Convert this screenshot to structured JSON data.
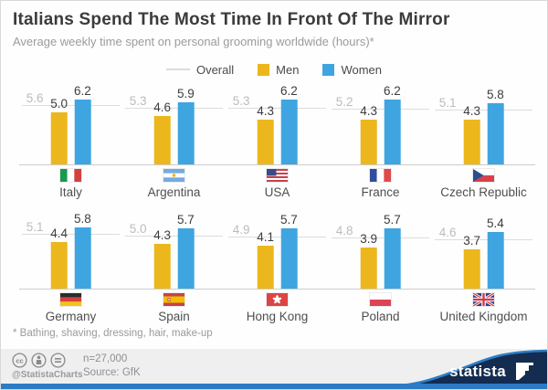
{
  "title": "Italians Spend The Most Time In Front Of The Mirror",
  "subtitle": "Average weekly time spent on personal grooming worldwide (hours)*",
  "legend": {
    "overall": "Overall",
    "men": "Men",
    "women": "Women"
  },
  "colors": {
    "men": "#ebb71c",
    "women": "#3fa5e0",
    "overall_line": "#dcdcdc",
    "bottom_bar": "#2c7bc7",
    "wave_navy": "#132c50",
    "wave_edge": "#2e7cc3"
  },
  "chart_data": {
    "type": "bar",
    "title": "Italians Spend The Most Time In Front Of The Mirror",
    "ylabel": "hours per week",
    "ylim": [
      0,
      6.5
    ],
    "grid": false,
    "legend_position": "top-center",
    "series_names": [
      "Overall",
      "Men",
      "Women"
    ],
    "countries": [
      {
        "name": "Italy",
        "flag": "italy",
        "overall": 5.6,
        "men": 5.0,
        "women": 6.2
      },
      {
        "name": "Argentina",
        "flag": "argentina",
        "overall": 5.3,
        "men": 4.6,
        "women": 5.9
      },
      {
        "name": "USA",
        "flag": "usa",
        "overall": 5.3,
        "men": 4.3,
        "women": 6.2
      },
      {
        "name": "France",
        "flag": "france",
        "overall": 5.2,
        "men": 4.3,
        "women": 6.2
      },
      {
        "name": "Czech Republic",
        "flag": "czech-republic",
        "overall": 5.1,
        "men": 4.3,
        "women": 5.8
      },
      {
        "name": "Germany",
        "flag": "germany",
        "overall": 5.1,
        "men": 4.4,
        "women": 5.8
      },
      {
        "name": "Spain",
        "flag": "spain",
        "overall": 5.0,
        "men": 4.3,
        "women": 5.7
      },
      {
        "name": "Hong Kong",
        "flag": "hong-kong",
        "overall": 4.9,
        "men": 4.1,
        "women": 5.7
      },
      {
        "name": "Poland",
        "flag": "poland",
        "overall": 4.8,
        "men": 3.9,
        "women": 5.7
      },
      {
        "name": "United Kingdom",
        "flag": "united-kingdom",
        "overall": 4.6,
        "men": 3.7,
        "women": 5.4
      }
    ]
  },
  "footnote": "* Bathing, shaving, dressing, hair, make-up",
  "footer": {
    "handle": "@StatistaCharts",
    "sample": "n=27,000",
    "source": "Source: GfK",
    "brand": "statista"
  }
}
